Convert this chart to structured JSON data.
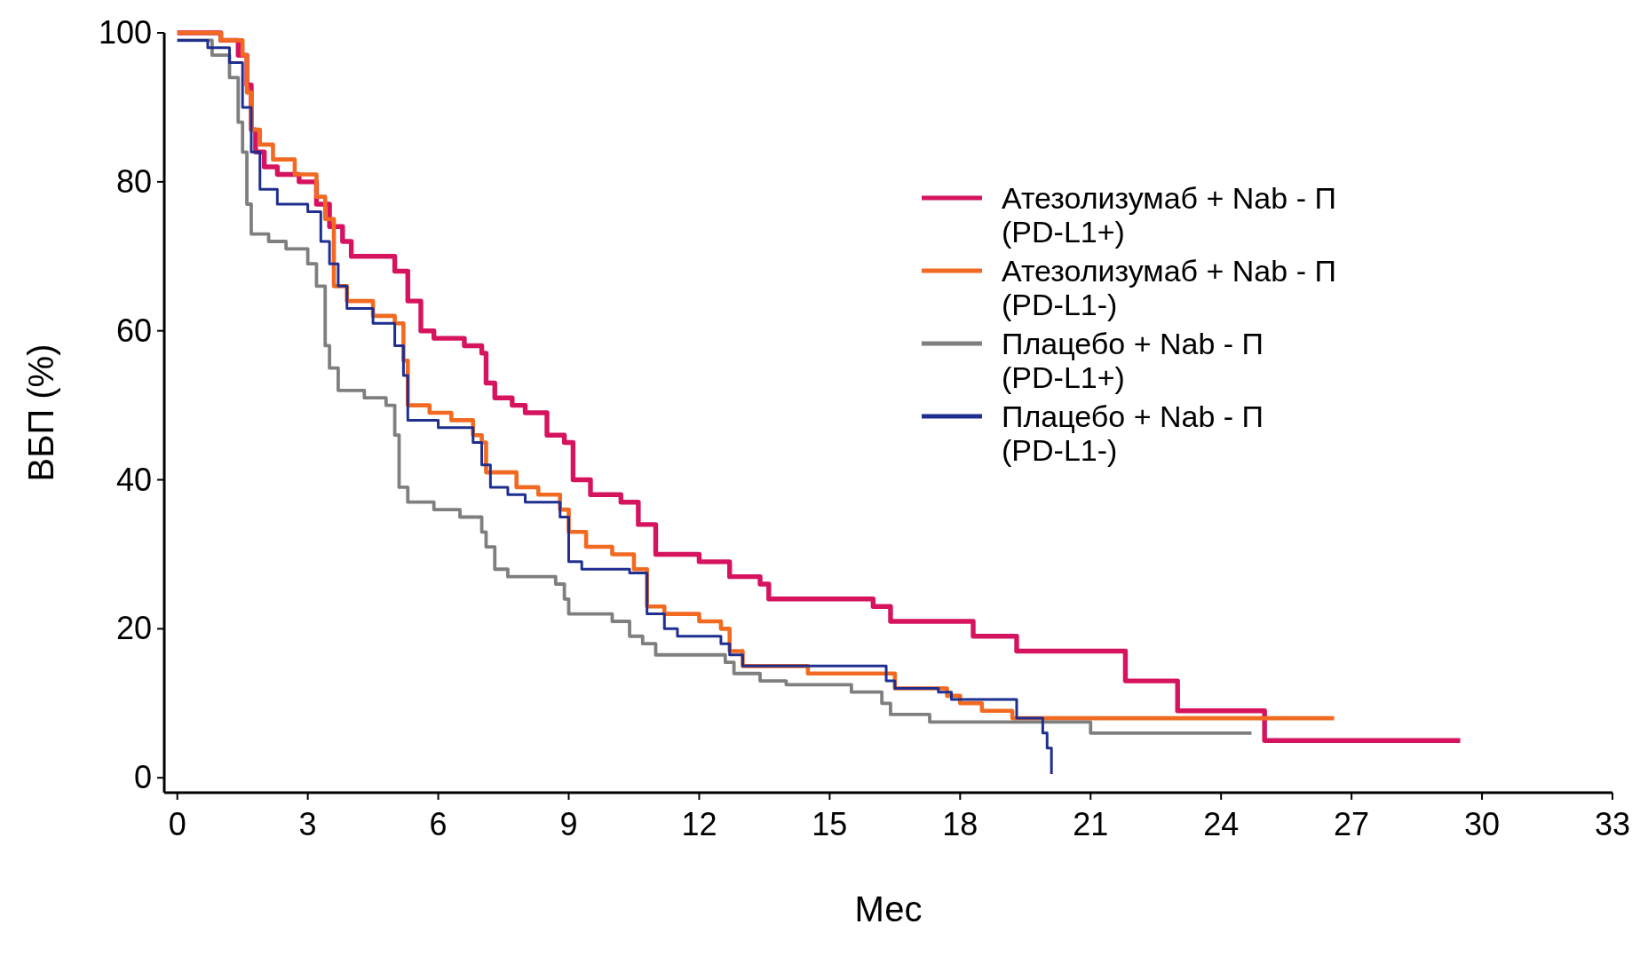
{
  "chart_data": {
    "type": "step",
    "xlabel": "Мес",
    "ylabel": "ВБП (%)",
    "xlim": [
      -0.3,
      33
    ],
    "ylim": [
      -2,
      100
    ],
    "xticks": [
      0,
      3,
      6,
      9,
      12,
      15,
      18,
      21,
      24,
      27,
      30,
      33
    ],
    "yticks": [
      0,
      20,
      40,
      60,
      80,
      100
    ],
    "grid": false,
    "legend": "right",
    "series": [
      {
        "name": "Атезолизумаб + Nab - П (PD-L1+)",
        "color": "#d6135e",
        "x": [
          0,
          1,
          1.4,
          1.6,
          1.7,
          1.8,
          2,
          2.3,
          2.8,
          3.2,
          3.5,
          3.8,
          4,
          5,
          5.3,
          5.6,
          5.9,
          6.6,
          7,
          7.1,
          7.3,
          7.7,
          8,
          8.5,
          8.9,
          9.1,
          9.5,
          10.2,
          10.6,
          11,
          12,
          12.7,
          13.4,
          13.6,
          16,
          16.4,
          18.3,
          19.3,
          21.8,
          23,
          25,
          29.5
        ],
        "values": [
          100,
          99,
          97,
          93,
          87,
          84,
          82,
          81,
          80,
          77,
          74,
          72,
          70,
          68,
          64,
          60,
          59,
          58,
          57,
          53,
          51,
          50,
          49,
          46,
          45,
          40,
          38,
          37,
          34,
          30,
          29,
          27,
          26,
          24,
          23,
          21,
          19,
          17,
          13,
          9,
          5,
          5
        ]
      },
      {
        "name": "Атезолизумаб + Nab - П (PD-L1-)",
        "color": "#f26a21",
        "x": [
          0,
          1,
          1.5,
          1.6,
          1.7,
          1.9,
          2.2,
          2.7,
          3.2,
          3.4,
          3.6,
          3.9,
          4.5,
          5,
          5.2,
          5.3,
          5.8,
          6.3,
          6.8,
          7,
          7.1,
          7.8,
          8.3,
          8.8,
          9,
          9.4,
          10,
          10.5,
          10.8,
          11.2,
          12,
          12.5,
          12.7,
          13,
          14.5,
          16.5,
          17.7,
          18,
          18.5,
          19.2,
          26.6
        ],
        "values": [
          100,
          99,
          97,
          92,
          87,
          85,
          83,
          81,
          78,
          75,
          66,
          64,
          62,
          61,
          56,
          50,
          49,
          48,
          46,
          45,
          41,
          39,
          38,
          36,
          33,
          31,
          30,
          28,
          23,
          22,
          21,
          20,
          17,
          15,
          14,
          12,
          11,
          10,
          9,
          8,
          8
        ]
      },
      {
        "name": "Плацебо + Nab - П (PD-L1+)",
        "color": "#7f7f7f",
        "x": [
          0,
          0.8,
          1.2,
          1.4,
          1.5,
          1.6,
          1.7,
          2.1,
          2.5,
          3,
          3.2,
          3.4,
          3.5,
          3.7,
          4.3,
          4.8,
          5,
          5.1,
          5.3,
          5.9,
          6.5,
          7,
          7.1,
          7.3,
          7.6,
          8.7,
          8.9,
          9,
          10,
          10.4,
          10.7,
          11,
          12.6,
          12.8,
          13.4,
          14,
          15.5,
          16.2,
          16.4,
          17.3,
          21,
          24.7
        ],
        "values": [
          99,
          97,
          94,
          88,
          84,
          77,
          73,
          72,
          71,
          69,
          66,
          58,
          55,
          52,
          51,
          50,
          46,
          39,
          37,
          36,
          35,
          33,
          31,
          28,
          27,
          26,
          24,
          22,
          21,
          19,
          18,
          16.5,
          15.5,
          14,
          13,
          12.5,
          11.5,
          10,
          8.5,
          7.5,
          6,
          6
        ]
      },
      {
        "name": "Плацебо + Nab - П (PD-L1-)",
        "color": "#1f2f8f",
        "x": [
          0,
          0.7,
          1.2,
          1.5,
          1.7,
          1.9,
          2.3,
          3,
          3.3,
          3.5,
          3.7,
          3.9,
          4.5,
          5,
          5.2,
          5.3,
          6,
          6.8,
          7,
          7.2,
          7.6,
          8,
          8.8,
          9,
          9.3,
          10.4,
          10.8,
          11.2,
          11.5,
          12.5,
          12.7,
          13,
          16.3,
          16.5,
          17.5,
          17.8,
          19.3,
          19.9,
          20,
          20.1
        ],
        "values": [
          99,
          98,
          96,
          90,
          84,
          79,
          77,
          76,
          72,
          69,
          66,
          63,
          61,
          58,
          54,
          48,
          47,
          45,
          42,
          39,
          38,
          37,
          35,
          29,
          28,
          27.5,
          22,
          20,
          19,
          18,
          16.5,
          15,
          13,
          12,
          11.5,
          10.5,
          8,
          6,
          4,
          0.5
        ]
      }
    ]
  }
}
